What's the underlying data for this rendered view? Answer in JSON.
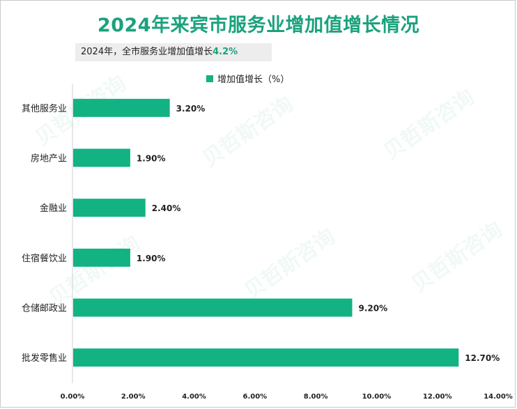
{
  "title": "2024年来宾市服务业增加值增长情况",
  "subtitle": {
    "prefix": "2024年，全市服务业增加值增长",
    "value": "4.2%"
  },
  "colors": {
    "bar": "#12b283",
    "title": "#1aa27d"
  },
  "chart_data": {
    "type": "bar",
    "orientation": "horizontal",
    "title": "2024年来宾市服务业增加值增长情况",
    "categories": [
      "其他服务业",
      "房地产业",
      "金融业",
      "住宿餐饮业",
      "仓储邮政业",
      "批发零售业"
    ],
    "series": [
      {
        "name": "增加值增长（%）",
        "values": [
          3.2,
          1.9,
          2.4,
          1.9,
          9.2,
          12.7
        ],
        "labels": [
          "3.20%",
          "1.90%",
          "2.40%",
          "1.90%",
          "9.20%",
          "12.70%"
        ]
      }
    ],
    "xlim": [
      0,
      14
    ],
    "xticks": [
      0,
      2,
      4,
      6,
      8,
      10,
      12,
      14
    ],
    "xtick_labels": [
      "0.00%",
      "2.00%",
      "4.00%",
      "6.00%",
      "8.00%",
      "10.00%",
      "12.00%",
      "14.00%"
    ],
    "legend": "top-center",
    "grid": false
  }
}
